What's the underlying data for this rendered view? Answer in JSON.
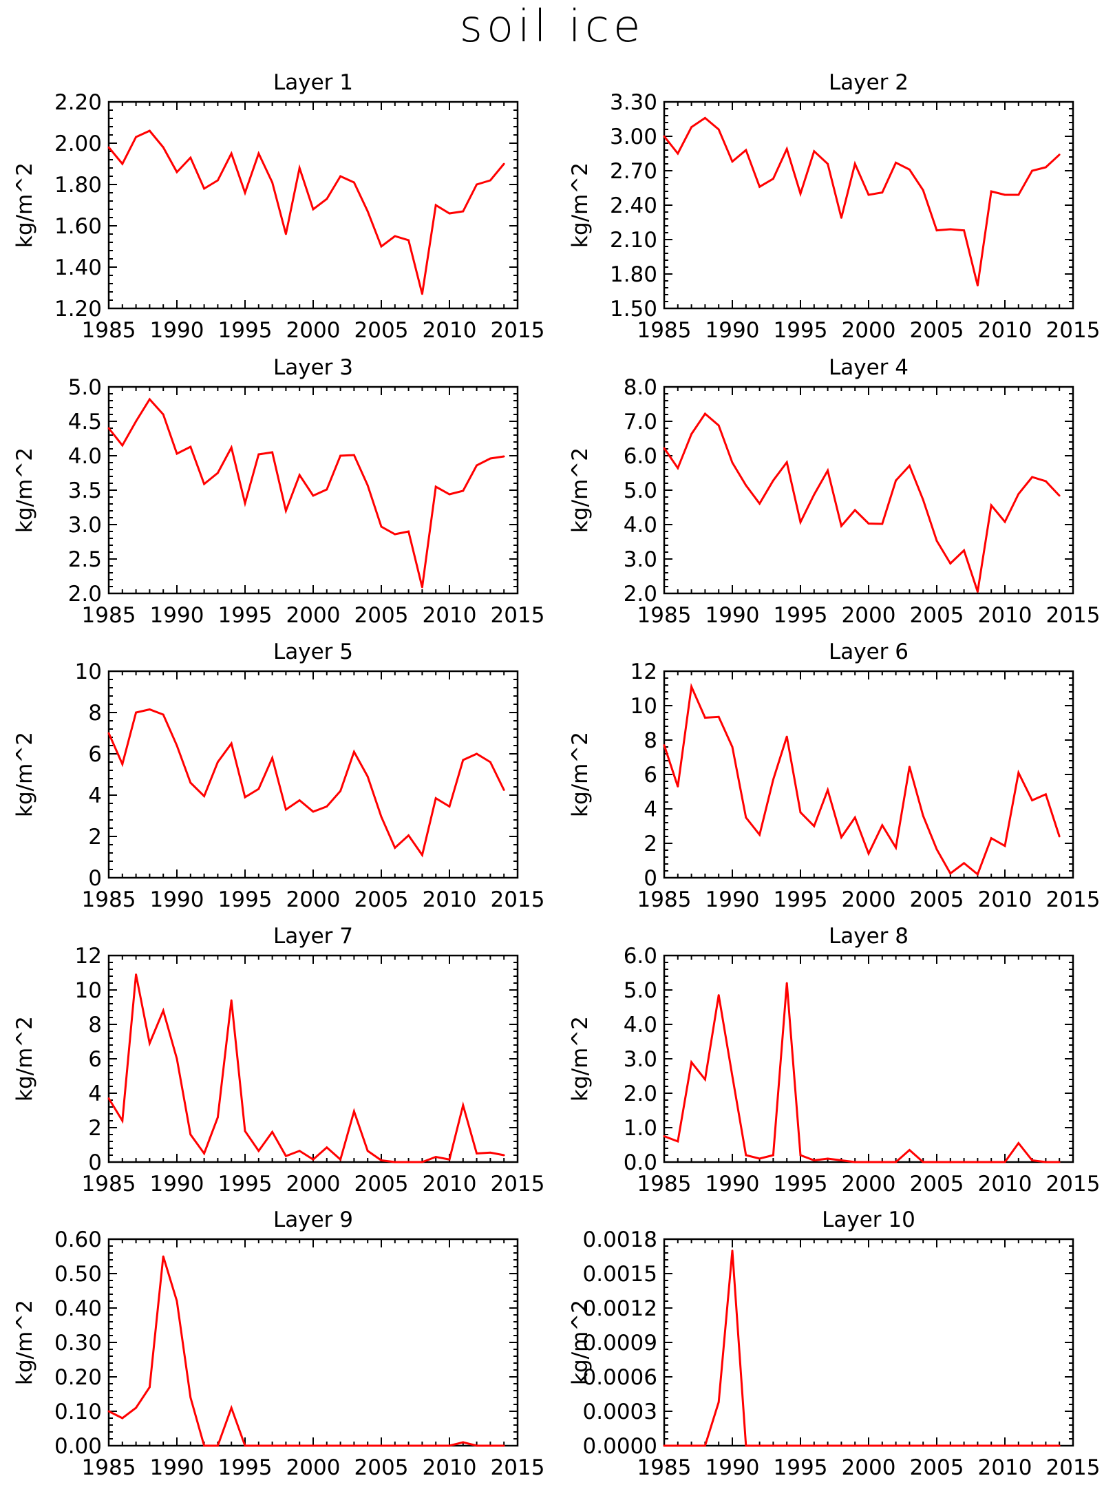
{
  "title": "soil ice",
  "colors": {
    "line": "#ff0000",
    "axis": "#000000",
    "background": "#ffffff"
  },
  "chart_data": [
    {
      "type": "line",
      "title": "Layer 1",
      "ylabel": "kg/m^2",
      "xlim": [
        1985,
        2015
      ],
      "xticks": [
        "1985",
        "1990",
        "1995",
        "2000",
        "2005",
        "2010",
        "2015"
      ],
      "ylim": [
        1.2,
        2.2
      ],
      "yticks": [
        "1.20",
        "1.40",
        "1.60",
        "1.80",
        "2.00",
        "2.20"
      ],
      "x": [
        1985,
        1986,
        1987,
        1988,
        1989,
        1990,
        1991,
        1992,
        1993,
        1994,
        1995,
        1996,
        1997,
        1998,
        1999,
        2000,
        2001,
        2002,
        2003,
        2004,
        2005,
        2006,
        2007,
        2008,
        2009,
        2010,
        2011,
        2012,
        2013,
        2014
      ],
      "series": [
        {
          "values": [
            1.98,
            1.9,
            2.03,
            2.06,
            1.98,
            1.86,
            1.93,
            1.78,
            1.82,
            1.95,
            1.76,
            1.95,
            1.81,
            1.56,
            1.88,
            1.68,
            1.73,
            1.84,
            1.81,
            1.67,
            1.5,
            1.55,
            1.53,
            1.27,
            1.7,
            1.66,
            1.67,
            1.8,
            1.82,
            1.9
          ]
        }
      ]
    },
    {
      "type": "line",
      "title": "Layer 2",
      "ylabel": "kg/m^2",
      "xlim": [
        1985,
        2015
      ],
      "xticks": [
        "1985",
        "1990",
        "1995",
        "2000",
        "2005",
        "2010",
        "2015"
      ],
      "ylim": [
        1.5,
        3.3
      ],
      "yticks": [
        "1.50",
        "1.80",
        "2.10",
        "2.40",
        "2.70",
        "3.00",
        "3.30"
      ],
      "x": [
        1985,
        1986,
        1987,
        1988,
        1989,
        1990,
        1991,
        1992,
        1993,
        1994,
        1995,
        1996,
        1997,
        1998,
        1999,
        2000,
        2001,
        2002,
        2003,
        2004,
        2005,
        2006,
        2007,
        2008,
        2009,
        2010,
        2011,
        2012,
        2013,
        2014
      ],
      "series": [
        {
          "values": [
            3.0,
            2.85,
            3.08,
            3.16,
            3.06,
            2.78,
            2.88,
            2.56,
            2.63,
            2.89,
            2.5,
            2.87,
            2.76,
            2.29,
            2.76,
            2.49,
            2.51,
            2.77,
            2.71,
            2.53,
            2.18,
            2.19,
            2.18,
            1.7,
            2.52,
            2.49,
            2.49,
            2.7,
            2.73,
            2.84
          ]
        }
      ]
    },
    {
      "type": "line",
      "title": "Layer 3",
      "ylabel": "kg/m^2",
      "xlim": [
        1985,
        2015
      ],
      "xticks": [
        "1985",
        "1990",
        "1995",
        "2000",
        "2005",
        "2010",
        "2015"
      ],
      "ylim": [
        2.0,
        5.0
      ],
      "yticks": [
        "2.0",
        "2.5",
        "3.0",
        "3.5",
        "4.0",
        "4.5",
        "5.0"
      ],
      "x": [
        1985,
        1986,
        1987,
        1988,
        1989,
        1990,
        1991,
        1992,
        1993,
        1994,
        1995,
        1996,
        1997,
        1998,
        1999,
        2000,
        2001,
        2002,
        2003,
        2004,
        2005,
        2006,
        2007,
        2008,
        2009,
        2010,
        2011,
        2012,
        2013,
        2014
      ],
      "series": [
        {
          "values": [
            4.4,
            4.15,
            4.5,
            4.82,
            4.6,
            4.03,
            4.13,
            3.59,
            3.75,
            4.12,
            3.31,
            4.02,
            4.05,
            3.2,
            3.72,
            3.42,
            3.51,
            4.0,
            4.01,
            3.57,
            2.97,
            2.86,
            2.9,
            2.09,
            3.55,
            3.44,
            3.49,
            3.86,
            3.96,
            3.99
          ]
        }
      ]
    },
    {
      "type": "line",
      "title": "Layer 4",
      "ylabel": "kg/m^2",
      "xlim": [
        1985,
        2015
      ],
      "xticks": [
        "1985",
        "1990",
        "1995",
        "2000",
        "2005",
        "2010",
        "2015"
      ],
      "ylim": [
        2.0,
        8.0
      ],
      "yticks": [
        "2.0",
        "3.0",
        "4.0",
        "5.0",
        "6.0",
        "7.0",
        "8.0"
      ],
      "x": [
        1985,
        1986,
        1987,
        1988,
        1989,
        1990,
        1991,
        1992,
        1993,
        1994,
        1995,
        1996,
        1997,
        1998,
        1999,
        2000,
        2001,
        2002,
        2003,
        2004,
        2005,
        2006,
        2007,
        2008,
        2009,
        2010,
        2011,
        2012,
        2013,
        2014
      ],
      "series": [
        {
          "values": [
            6.22,
            5.64,
            6.63,
            7.22,
            6.88,
            5.8,
            5.14,
            4.61,
            5.28,
            5.81,
            4.07,
            4.87,
            5.57,
            3.96,
            4.42,
            4.03,
            4.02,
            5.28,
            5.71,
            4.72,
            3.53,
            2.87,
            3.25,
            2.05,
            4.56,
            4.08,
            4.89,
            5.38,
            5.26,
            4.84
          ]
        }
      ]
    },
    {
      "type": "line",
      "title": "Layer 5",
      "ylabel": "kg/m^2",
      "xlim": [
        1985,
        2015
      ],
      "xticks": [
        "1985",
        "1990",
        "1995",
        "2000",
        "2005",
        "2010",
        "2015"
      ],
      "ylim": [
        0,
        10
      ],
      "yticks": [
        "0",
        "2",
        "4",
        "6",
        "8",
        "10"
      ],
      "x": [
        1985,
        1986,
        1987,
        1988,
        1989,
        1990,
        1991,
        1992,
        1993,
        1994,
        1995,
        1996,
        1997,
        1998,
        1999,
        2000,
        2001,
        2002,
        2003,
        2004,
        2005,
        2006,
        2007,
        2008,
        2009,
        2010,
        2011,
        2012,
        2013,
        2014
      ],
      "series": [
        {
          "values": [
            7.0,
            5.5,
            8.0,
            8.15,
            7.9,
            6.4,
            4.6,
            3.95,
            5.6,
            6.5,
            3.9,
            4.3,
            5.8,
            3.3,
            3.75,
            3.2,
            3.45,
            4.2,
            6.1,
            4.9,
            2.95,
            1.45,
            2.05,
            1.1,
            3.85,
            3.45,
            5.7,
            6.0,
            5.6,
            4.25
          ]
        }
      ]
    },
    {
      "type": "line",
      "title": "Layer 6",
      "ylabel": "kg/m^2",
      "xlim": [
        1985,
        2015
      ],
      "xticks": [
        "1985",
        "1990",
        "1995",
        "2000",
        "2005",
        "2010",
        "2015"
      ],
      "ylim": [
        0,
        12
      ],
      "yticks": [
        "0",
        "2",
        "4",
        "6",
        "8",
        "10",
        "12"
      ],
      "x": [
        1985,
        1986,
        1987,
        1988,
        1989,
        1990,
        1991,
        1992,
        1993,
        1994,
        1995,
        1996,
        1997,
        1998,
        1999,
        2000,
        2001,
        2002,
        2003,
        2004,
        2005,
        2006,
        2007,
        2008,
        2009,
        2010,
        2011,
        2012,
        2013,
        2014
      ],
      "series": [
        {
          "values": [
            7.7,
            5.3,
            11.1,
            9.3,
            9.35,
            7.6,
            3.5,
            2.5,
            5.7,
            8.2,
            3.8,
            3.0,
            5.1,
            2.35,
            3.5,
            1.4,
            3.05,
            1.75,
            6.45,
            3.6,
            1.65,
            0.25,
            0.85,
            0.2,
            2.3,
            1.85,
            6.1,
            4.5,
            4.85,
            2.4
          ]
        }
      ]
    },
    {
      "type": "line",
      "title": "Layer 7",
      "ylabel": "kg/m^2",
      "xlim": [
        1985,
        2015
      ],
      "xticks": [
        "1985",
        "1990",
        "1995",
        "2000",
        "2005",
        "2010",
        "2015"
      ],
      "ylim": [
        0,
        12
      ],
      "yticks": [
        "0",
        "2",
        "4",
        "6",
        "8",
        "10",
        "12"
      ],
      "x": [
        1985,
        1986,
        1987,
        1988,
        1989,
        1990,
        1991,
        1992,
        1993,
        1994,
        1995,
        1996,
        1997,
        1998,
        1999,
        2000,
        2001,
        2002,
        2003,
        2004,
        2005,
        2006,
        2007,
        2008,
        2009,
        2010,
        2011,
        2012,
        2013,
        2014
      ],
      "series": [
        {
          "values": [
            3.7,
            2.4,
            10.9,
            6.9,
            8.8,
            6.0,
            1.6,
            0.5,
            2.6,
            9.4,
            1.8,
            0.65,
            1.75,
            0.35,
            0.65,
            0.15,
            0.85,
            0.15,
            2.95,
            0.65,
            0.1,
            0.0,
            0.0,
            0.0,
            0.3,
            0.15,
            3.3,
            0.5,
            0.55,
            0.4
          ]
        }
      ]
    },
    {
      "type": "line",
      "title": "Layer 8",
      "ylabel": "kg/m^2",
      "xlim": [
        1985,
        2015
      ],
      "xticks": [
        "1985",
        "1990",
        "1995",
        "2000",
        "2005",
        "2010",
        "2015"
      ],
      "ylim": [
        0,
        6.0
      ],
      "yticks": [
        "0.0",
        "1.0",
        "2.0",
        "3.0",
        "4.0",
        "5.0",
        "6.0"
      ],
      "x": [
        1985,
        1986,
        1987,
        1988,
        1989,
        1990,
        1991,
        1992,
        1993,
        1994,
        1995,
        1996,
        1997,
        1998,
        1999,
        2000,
        2001,
        2002,
        2003,
        2004,
        2005,
        2006,
        2007,
        2008,
        2009,
        2010,
        2011,
        2012,
        2013,
        2014
      ],
      "series": [
        {
          "values": [
            0.75,
            0.6,
            2.9,
            2.4,
            4.85,
            2.5,
            0.2,
            0.1,
            0.2,
            5.2,
            0.2,
            0.05,
            0.1,
            0.05,
            0.0,
            0.0,
            0.0,
            0.0,
            0.35,
            0.0,
            0.0,
            0.0,
            0.0,
            0.0,
            0.0,
            0.0,
            0.55,
            0.05,
            0.0,
            0.0
          ]
        }
      ]
    },
    {
      "type": "line",
      "title": "Layer 9",
      "ylabel": "kg/m^2",
      "xlim": [
        1985,
        2015
      ],
      "xticks": [
        "1985",
        "1990",
        "1995",
        "2000",
        "2005",
        "2010",
        "2015"
      ],
      "ylim": [
        0,
        0.6
      ],
      "yticks": [
        "0.00",
        "0.10",
        "0.20",
        "0.30",
        "0.40",
        "0.50",
        "0.60"
      ],
      "x": [
        1985,
        1986,
        1987,
        1988,
        1989,
        1990,
        1991,
        1992,
        1993,
        1994,
        1995,
        1996,
        1997,
        1998,
        1999,
        2000,
        2001,
        2002,
        2003,
        2004,
        2005,
        2006,
        2007,
        2008,
        2009,
        2010,
        2011,
        2012,
        2013,
        2014
      ],
      "series": [
        {
          "values": [
            0.1,
            0.08,
            0.11,
            0.17,
            0.55,
            0.42,
            0.14,
            0.0,
            0.0,
            0.11,
            0.0,
            0.0,
            0.0,
            0.0,
            0.0,
            0.0,
            0.0,
            0.0,
            0.0,
            0.0,
            0.0,
            0.0,
            0.0,
            0.0,
            0.0,
            0.0,
            0.01,
            0.0,
            0.0,
            0.0
          ]
        }
      ]
    },
    {
      "type": "line",
      "title": "Layer 10",
      "ylabel": "kg/m^2",
      "xlim": [
        1985,
        2015
      ],
      "xticks": [
        "1985",
        "1990",
        "1995",
        "2000",
        "2005",
        "2010",
        "2015"
      ],
      "ylim": [
        0,
        0.0018
      ],
      "yticks": [
        "0.0000",
        "0.0003",
        "0.0006",
        "0.0009",
        "0.0012",
        "0.0015",
        "0.0018"
      ],
      "x": [
        1985,
        1986,
        1987,
        1988,
        1989,
        1990,
        1991,
        1992,
        1993,
        1994,
        1995,
        1996,
        1997,
        1998,
        1999,
        2000,
        2001,
        2002,
        2003,
        2004,
        2005,
        2006,
        2007,
        2008,
        2009,
        2010,
        2011,
        2012,
        2013,
        2014
      ],
      "series": [
        {
          "values": [
            0,
            0,
            0,
            0,
            0.00038,
            0.0017,
            0,
            0,
            0,
            0,
            0,
            0,
            0,
            0,
            0,
            0,
            0,
            0,
            0,
            0,
            0,
            0,
            0,
            0,
            0,
            0,
            0,
            0,
            0,
            0
          ]
        }
      ]
    }
  ]
}
